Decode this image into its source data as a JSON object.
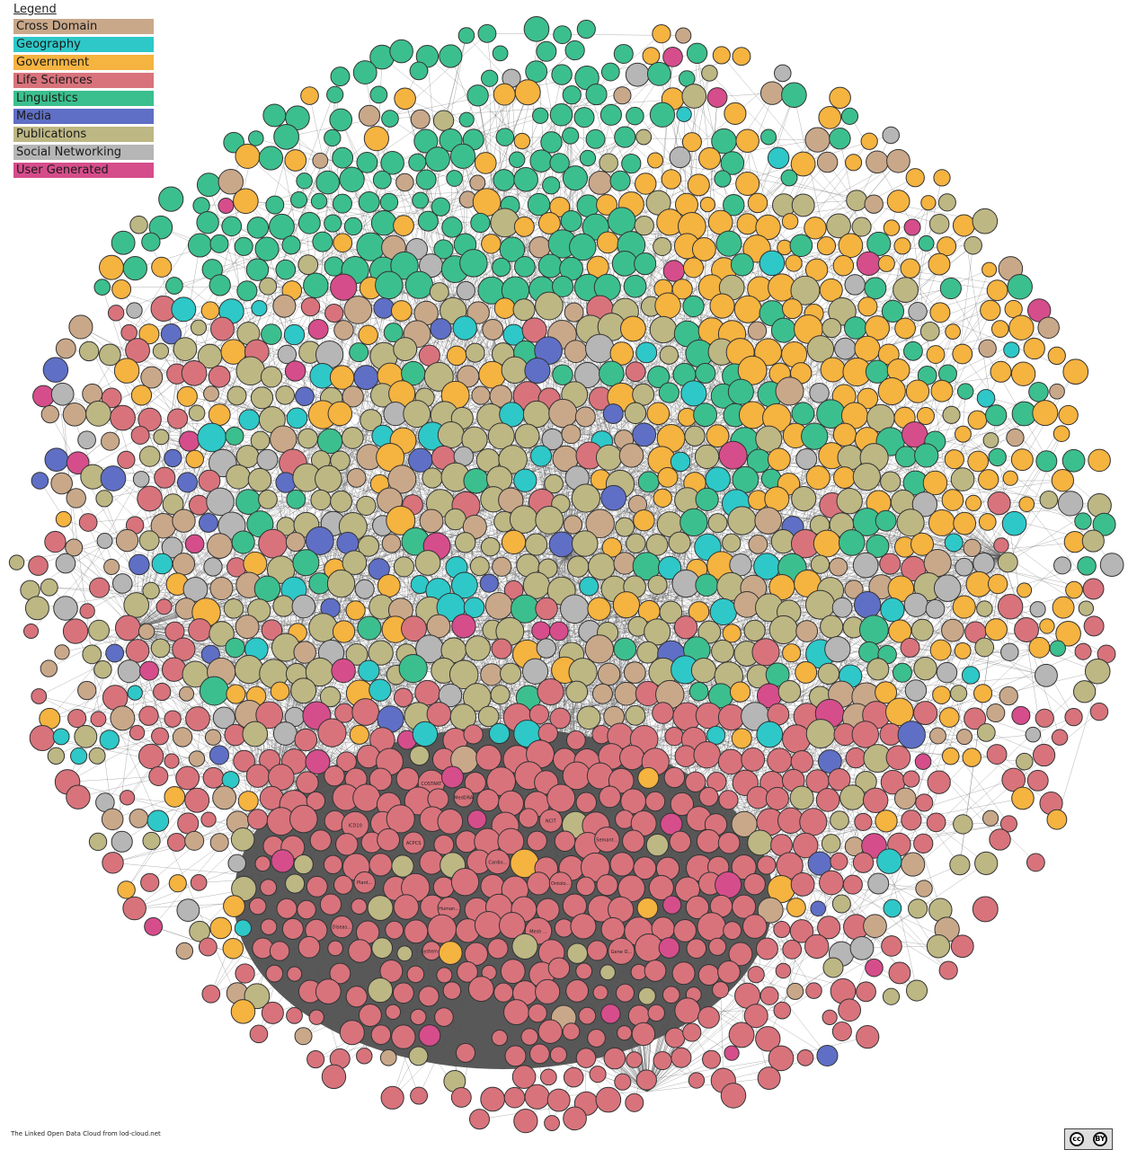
{
  "legend": {
    "title": "Legend",
    "items": [
      {
        "label": "Cross Domain",
        "color": "#c9a88a"
      },
      {
        "label": "Geography",
        "color": "#2ec8c8"
      },
      {
        "label": "Government",
        "color": "#f5b340"
      },
      {
        "label": "Life Sciences",
        "color": "#d8737c"
      },
      {
        "label": "Linguistics",
        "color": "#3cbf8e"
      },
      {
        "label": "Media",
        "color": "#5f6fc6"
      },
      {
        "label": "Publications",
        "color": "#bdb784"
      },
      {
        "label": "Social Networking",
        "color": "#b6b6b6"
      },
      {
        "label": "User Generated",
        "color": "#d64d8b"
      }
    ]
  },
  "footer": {
    "credit": "The Linked Open Data Cloud from lod-cloud.net"
  },
  "license_badge": {
    "cc": "cc",
    "by": "BY",
    "icon": "creative-commons-by-icon"
  },
  "sample_node_labels": [
    "COSTART",
    "MedDRA",
    "ICD10",
    "NCIT",
    "ACPCS",
    "Semant...",
    "Cardio...",
    "Plant...",
    "Ontolo...",
    "Human...",
    "Diseas...",
    "Mesh ...",
    "System...",
    "Gene O..."
  ]
}
